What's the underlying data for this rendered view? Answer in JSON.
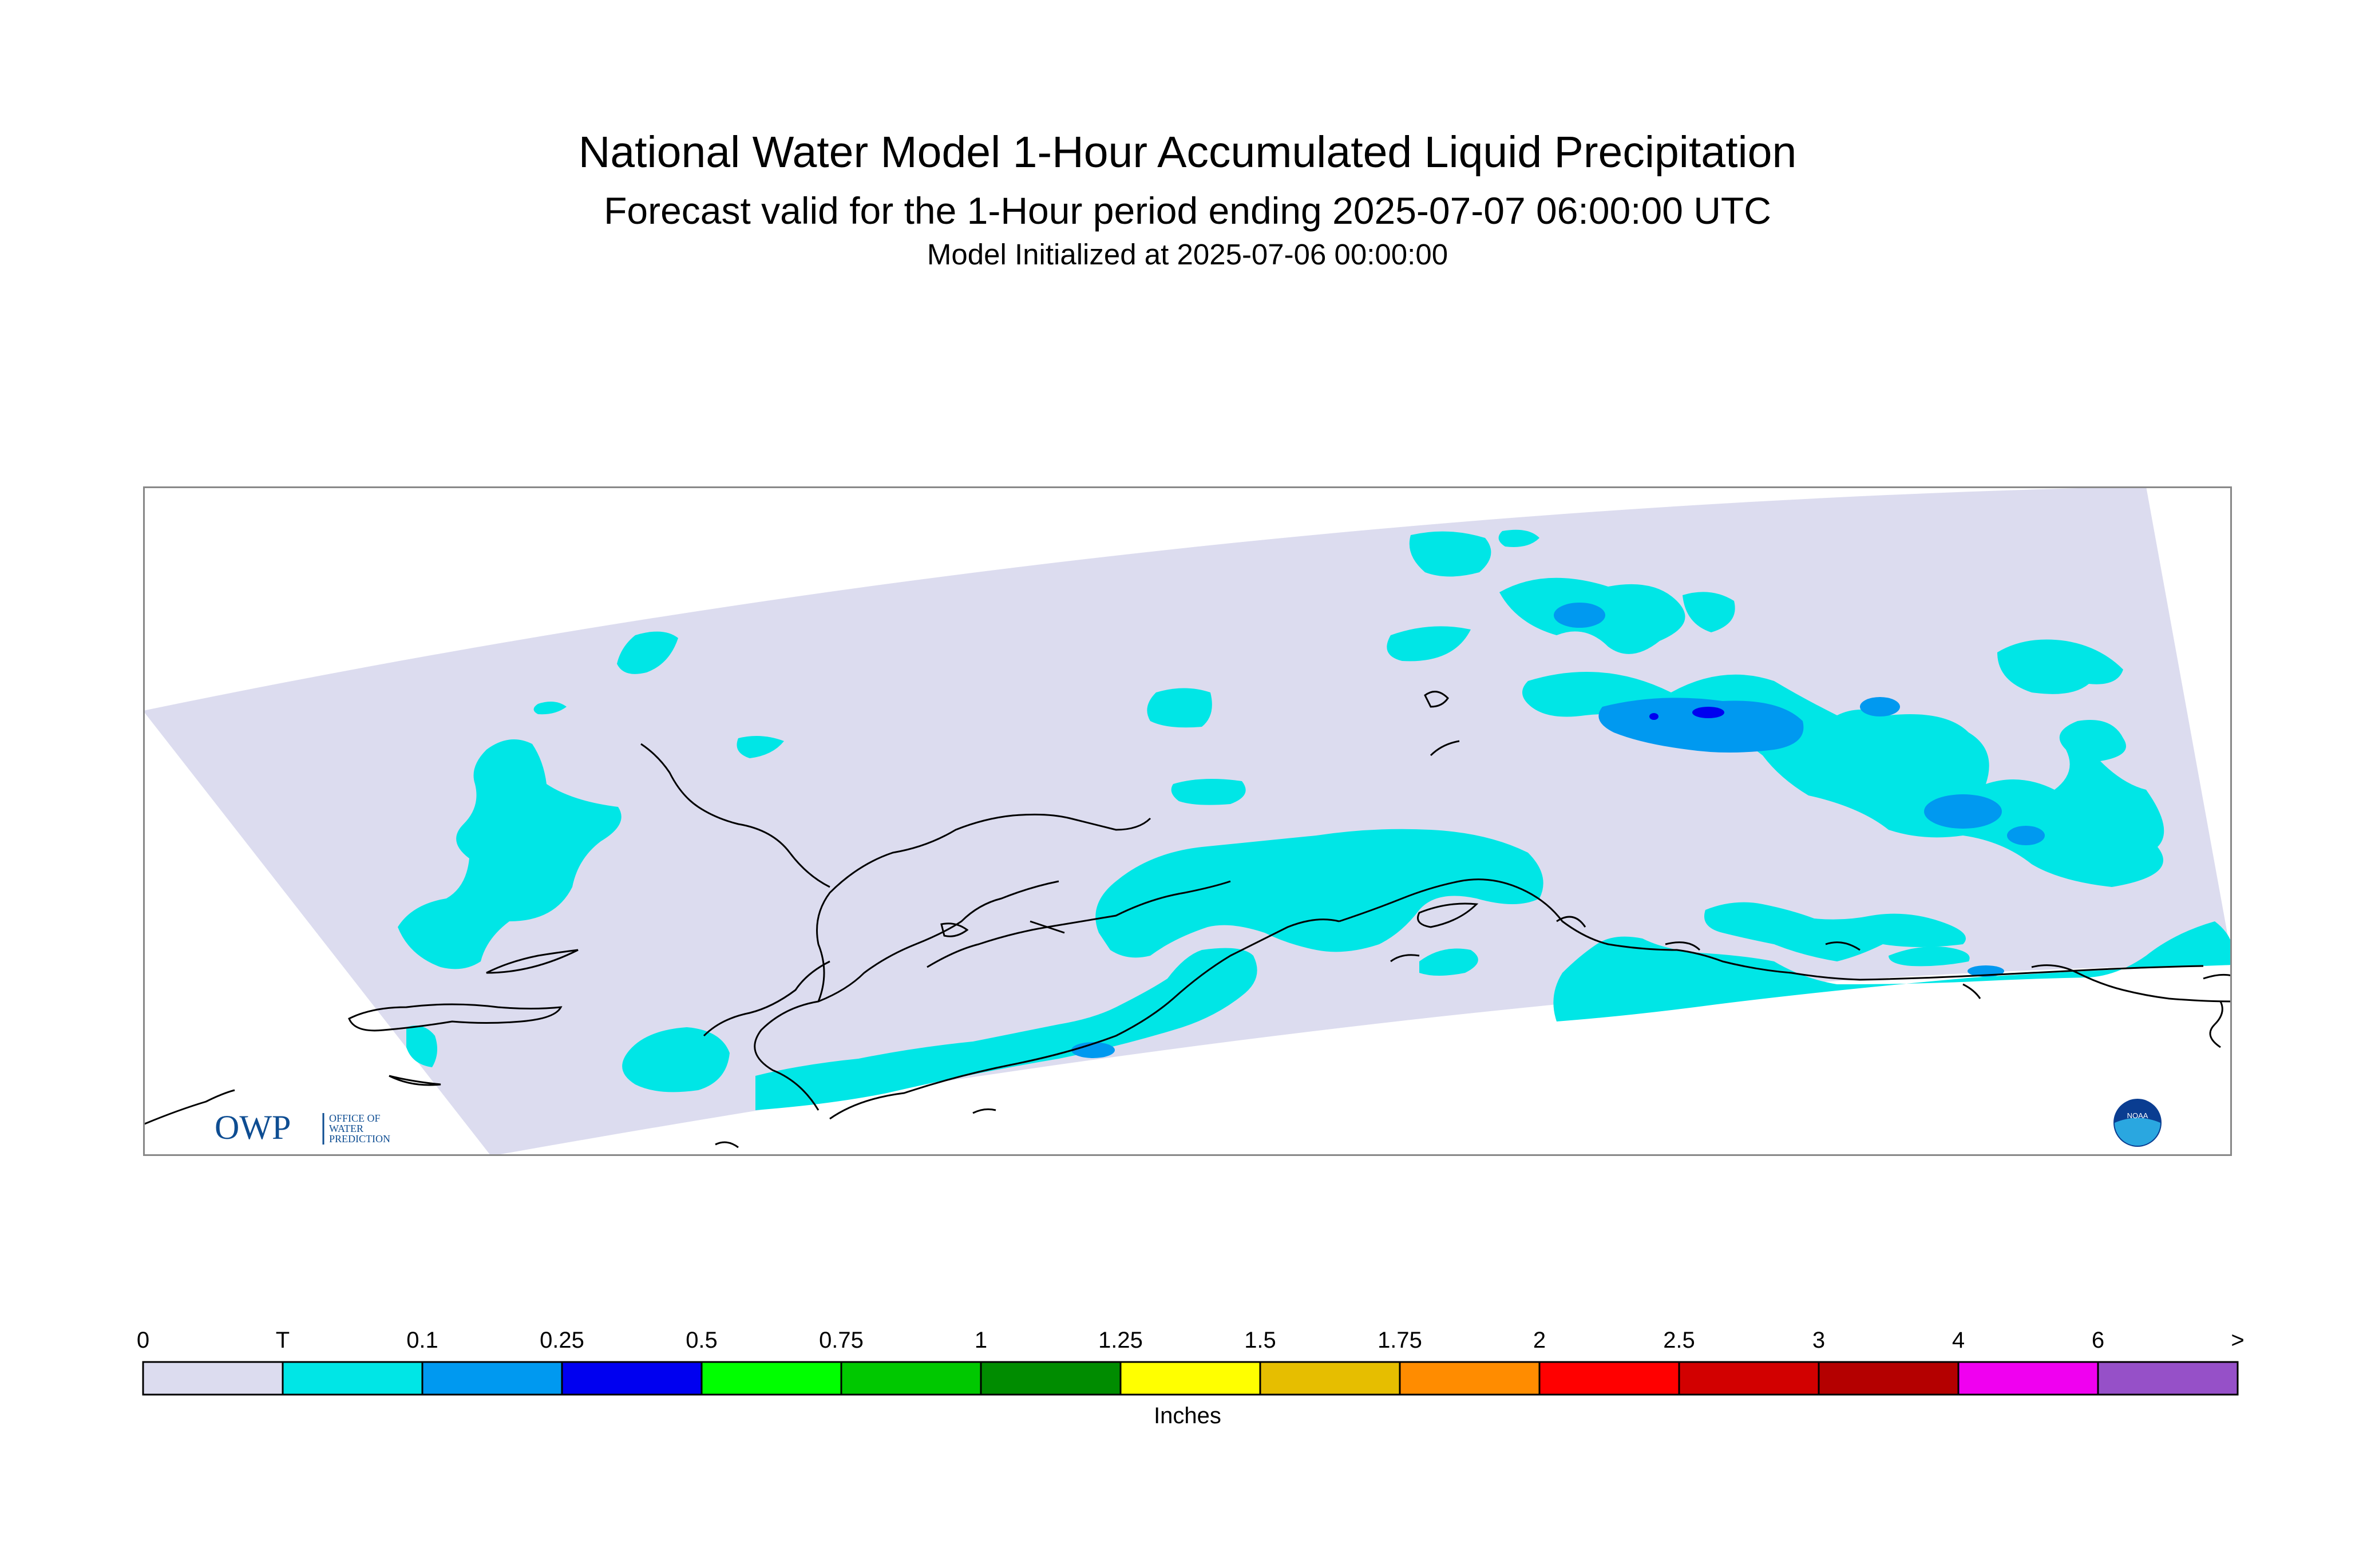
{
  "title": "National Water Model 1-Hour Accumulated Liquid Precipitation",
  "subtitle": "Forecast valid for the 1-Hour period ending 2025-07-07 06:00:00 UTC",
  "init_line": "Model Initialized at 2025-07-06 00:00:00",
  "logos": {
    "owp_text": "OWP",
    "owp_sub1": "OFFICE OF",
    "owp_sub2": "WATER",
    "owp_sub3": "PREDICTION",
    "noaa_text": "NOAA"
  },
  "colors": {
    "zero": "#dcdcef",
    "trace": "#00e6e6",
    "light_blue": "#0099f0",
    "blue": "#0000f0",
    "coast": "#000000",
    "frame": "#888888"
  },
  "legend": {
    "units": "Inches",
    "labels": [
      "0",
      "T",
      "0.1",
      "0.25",
      "0.5",
      "0.75",
      "1",
      "1.25",
      "1.5",
      "1.75",
      "2",
      "2.5",
      "3",
      "4",
      "6",
      ">"
    ],
    "colors": [
      "#dcdcef",
      "#00e6e6",
      "#0099f0",
      "#0000f0",
      "#00ff00",
      "#00c800",
      "#008c00",
      "#ffff00",
      "#e6be00",
      "#ff8c00",
      "#ff0000",
      "#d20000",
      "#b40000",
      "#f000f0",
      "#9650c8"
    ]
  }
}
